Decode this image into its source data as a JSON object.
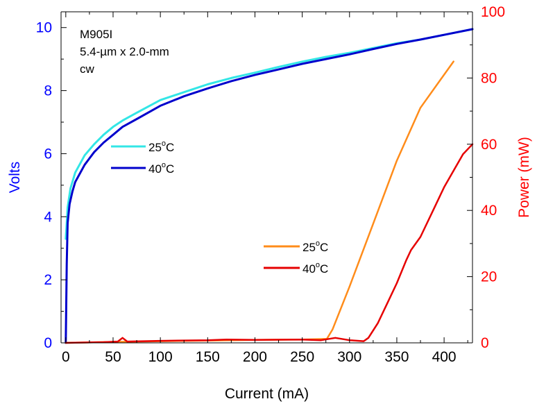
{
  "colors": {
    "left_axis": "#0000ff",
    "right_axis": "#ff0000",
    "bottom_axis": "#000000"
  },
  "chart_data": {
    "type": "line",
    "xlabel": "Current (mA)",
    "ylabel_left": "Volts",
    "ylabel_right": "Power (mW)",
    "xlim": [
      -5,
      430
    ],
    "ylim_left": [
      0,
      10.5
    ],
    "ylim_right": [
      0,
      100
    ],
    "x_ticks": [
      "0",
      "50",
      "100",
      "150",
      "200",
      "250",
      "300",
      "350",
      "400"
    ],
    "y_left_ticks": [
      "0",
      "2",
      "4",
      "6",
      "8",
      "10"
    ],
    "y_right_ticks": [
      "0",
      "20",
      "40",
      "60",
      "80",
      "100"
    ],
    "annotation": [
      "M905I",
      "5.4-µm x 2.0-mm",
      "cw"
    ],
    "legends": [
      {
        "entries": [
          {
            "label": "25",
            "unit": "C",
            "degree": "o",
            "color": "#33e6e6"
          },
          {
            "label": "40",
            "unit": "C",
            "degree": "o",
            "color": "#0000cc"
          }
        ]
      },
      {
        "entries": [
          {
            "label": "25",
            "unit": "C",
            "degree": "o",
            "color": "#ff8c1a"
          },
          {
            "label": "40",
            "unit": "C",
            "degree": "o",
            "color": "#e60000"
          }
        ]
      }
    ],
    "series": [
      {
        "axis": "left",
        "color": "#33e6e6",
        "width": 3,
        "points": [
          [
            0,
            3.3
          ],
          [
            2,
            4.3
          ],
          [
            5,
            4.9
          ],
          [
            10,
            5.4
          ],
          [
            20,
            5.95
          ],
          [
            30,
            6.3
          ],
          [
            40,
            6.6
          ],
          [
            50,
            6.85
          ],
          [
            60,
            7.05
          ],
          [
            75,
            7.3
          ],
          [
            100,
            7.7
          ],
          [
            125,
            7.95
          ],
          [
            150,
            8.2
          ],
          [
            175,
            8.4
          ],
          [
            200,
            8.57
          ],
          [
            225,
            8.75
          ],
          [
            250,
            8.92
          ],
          [
            275,
            9.07
          ],
          [
            300,
            9.2
          ],
          [
            325,
            9.35
          ],
          [
            350,
            9.5
          ],
          [
            375,
            9.62
          ],
          [
            400,
            9.77
          ],
          [
            430,
            9.95
          ]
        ]
      },
      {
        "axis": "left",
        "color": "#0000cc",
        "width": 3,
        "points": [
          [
            0,
            0
          ],
          [
            1,
            2.5
          ],
          [
            2,
            3.8
          ],
          [
            4,
            4.4
          ],
          [
            7,
            4.8
          ],
          [
            10,
            5.1
          ],
          [
            20,
            5.65
          ],
          [
            30,
            6.05
          ],
          [
            40,
            6.35
          ],
          [
            50,
            6.6
          ],
          [
            60,
            6.85
          ],
          [
            75,
            7.1
          ],
          [
            100,
            7.52
          ],
          [
            125,
            7.82
          ],
          [
            150,
            8.07
          ],
          [
            175,
            8.3
          ],
          [
            200,
            8.5
          ],
          [
            225,
            8.67
          ],
          [
            250,
            8.85
          ],
          [
            275,
            9.0
          ],
          [
            300,
            9.15
          ],
          [
            325,
            9.32
          ],
          [
            350,
            9.48
          ],
          [
            375,
            9.62
          ],
          [
            400,
            9.77
          ],
          [
            430,
            9.95
          ]
        ]
      },
      {
        "axis": "right",
        "color": "#ff8c1a",
        "width": 2.5,
        "points": [
          [
            0,
            0
          ],
          [
            50,
            0.3
          ],
          [
            100,
            0.5
          ],
          [
            150,
            0.7
          ],
          [
            200,
            0.9
          ],
          [
            250,
            1.0
          ],
          [
            276,
            1.2
          ],
          [
            282,
            4
          ],
          [
            300,
            17
          ],
          [
            325,
            36
          ],
          [
            350,
            55
          ],
          [
            375,
            71
          ],
          [
            400,
            81
          ],
          [
            410,
            85
          ]
        ]
      },
      {
        "axis": "right",
        "color": "#e60000",
        "width": 2.5,
        "points": [
          [
            0,
            0
          ],
          [
            40,
            0.2
          ],
          [
            55,
            0.4
          ],
          [
            60,
            1.5
          ],
          [
            65,
            0.4
          ],
          [
            100,
            0.6
          ],
          [
            150,
            0.8
          ],
          [
            170,
            1.0
          ],
          [
            200,
            0.9
          ],
          [
            250,
            1.0
          ],
          [
            270,
            0.8
          ],
          [
            285,
            1.5
          ],
          [
            300,
            0.8
          ],
          [
            315,
            0.5
          ],
          [
            320,
            1.5
          ],
          [
            330,
            6
          ],
          [
            340,
            12
          ],
          [
            350,
            18
          ],
          [
            360,
            25
          ],
          [
            365,
            28
          ],
          [
            375,
            32
          ],
          [
            380,
            35
          ],
          [
            390,
            41
          ],
          [
            400,
            47
          ],
          [
            410,
            52
          ],
          [
            420,
            57
          ],
          [
            430,
            60
          ]
        ]
      }
    ]
  }
}
